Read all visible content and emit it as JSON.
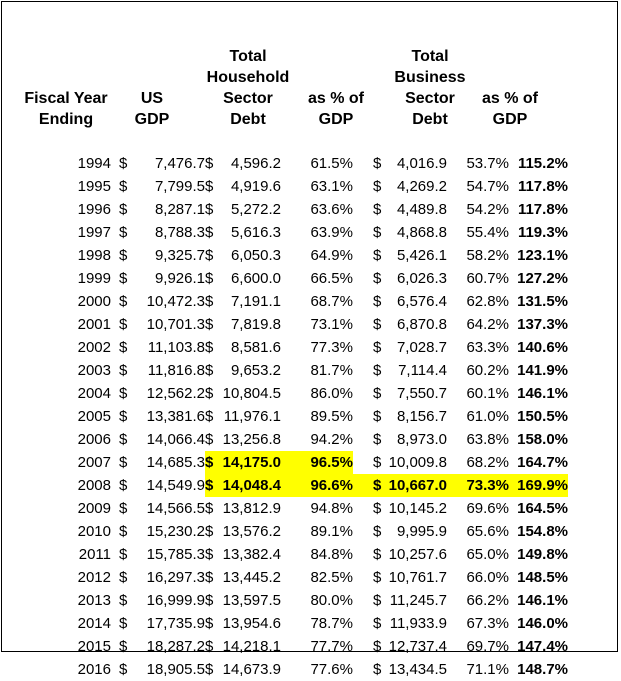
{
  "headers": {
    "fiscal_year": [
      "Fiscal Year",
      "Ending"
    ],
    "us_gdp": [
      "US",
      "GDP"
    ],
    "household_debt": [
      "Total",
      "Household",
      "Sector",
      "Debt"
    ],
    "household_pct": [
      "as % of",
      "GDP"
    ],
    "business_debt": [
      "Total",
      "Business",
      "Sector",
      "Debt"
    ],
    "business_pct": [
      "as % of",
      "GDP"
    ]
  },
  "currency_symbol": "$",
  "highlight_color": "#ffff00",
  "rows": [
    {
      "year": "1994",
      "gdp": "7,476.7",
      "hh": "4,596.2",
      "hh_pct": "61.5%",
      "bus": "4,016.9",
      "bus_pct": "53.7%",
      "total": "115.2%"
    },
    {
      "year": "1995",
      "gdp": "7,799.5",
      "hh": "4,919.6",
      "hh_pct": "63.1%",
      "bus": "4,269.2",
      "bus_pct": "54.7%",
      "total": "117.8%"
    },
    {
      "year": "1996",
      "gdp": "8,287.1",
      "hh": "5,272.2",
      "hh_pct": "63.6%",
      "bus": "4,489.8",
      "bus_pct": "54.2%",
      "total": "117.8%"
    },
    {
      "year": "1997",
      "gdp": "8,788.3",
      "hh": "5,616.3",
      "hh_pct": "63.9%",
      "bus": "4,868.8",
      "bus_pct": "55.4%",
      "total": "119.3%"
    },
    {
      "year": "1998",
      "gdp": "9,325.7",
      "hh": "6,050.3",
      "hh_pct": "64.9%",
      "bus": "5,426.1",
      "bus_pct": "58.2%",
      "total": "123.1%"
    },
    {
      "year": "1999",
      "gdp": "9,926.1",
      "hh": "6,600.0",
      "hh_pct": "66.5%",
      "bus": "6,026.3",
      "bus_pct": "60.7%",
      "total": "127.2%"
    },
    {
      "year": "2000",
      "gdp": "10,472.3",
      "hh": "7,191.1",
      "hh_pct": "68.7%",
      "bus": "6,576.4",
      "bus_pct": "62.8%",
      "total": "131.5%"
    },
    {
      "year": "2001",
      "gdp": "10,701.3",
      "hh": "7,819.8",
      "hh_pct": "73.1%",
      "bus": "6,870.8",
      "bus_pct": "64.2%",
      "total": "137.3%"
    },
    {
      "year": "2002",
      "gdp": "11,103.8",
      "hh": "8,581.6",
      "hh_pct": "77.3%",
      "bus": "7,028.7",
      "bus_pct": "63.3%",
      "total": "140.6%"
    },
    {
      "year": "2003",
      "gdp": "11,816.8",
      "hh": "9,653.2",
      "hh_pct": "81.7%",
      "bus": "7,114.4",
      "bus_pct": "60.2%",
      "total": "141.9%"
    },
    {
      "year": "2004",
      "gdp": "12,562.2",
      "hh": "10,804.5",
      "hh_pct": "86.0%",
      "bus": "7,550.7",
      "bus_pct": "60.1%",
      "total": "146.1%"
    },
    {
      "year": "2005",
      "gdp": "13,381.6",
      "hh": "11,976.1",
      "hh_pct": "89.5%",
      "bus": "8,156.7",
      "bus_pct": "61.0%",
      "total": "150.5%"
    },
    {
      "year": "2006",
      "gdp": "14,066.4",
      "hh": "13,256.8",
      "hh_pct": "94.2%",
      "bus": "8,973.0",
      "bus_pct": "63.8%",
      "total": "158.0%"
    },
    {
      "year": "2007",
      "gdp": "14,685.3",
      "hh": "14,175.0",
      "hh_pct": "96.5%",
      "bus": "10,009.8",
      "bus_pct": "68.2%",
      "total": "164.7%",
      "hh_highlight": true
    },
    {
      "year": "2008",
      "gdp": "14,549.9",
      "hh": "14,048.4",
      "hh_pct": "96.6%",
      "bus": "10,667.0",
      "bus_pct": "73.3%",
      "total": "169.9%",
      "hh_highlight": true,
      "bus_highlight": true
    },
    {
      "year": "2009",
      "gdp": "14,566.5",
      "hh": "13,812.9",
      "hh_pct": "94.8%",
      "bus": "10,145.2",
      "bus_pct": "69.6%",
      "total": "164.5%"
    },
    {
      "year": "2010",
      "gdp": "15,230.2",
      "hh": "13,576.2",
      "hh_pct": "89.1%",
      "bus": "9,995.9",
      "bus_pct": "65.6%",
      "total": "154.8%"
    },
    {
      "year": "2011",
      "gdp": "15,785.3",
      "hh": "13,382.4",
      "hh_pct": "84.8%",
      "bus": "10,257.6",
      "bus_pct": "65.0%",
      "total": "149.8%"
    },
    {
      "year": "2012",
      "gdp": "16,297.3",
      "hh": "13,445.2",
      "hh_pct": "82.5%",
      "bus": "10,761.7",
      "bus_pct": "66.0%",
      "total": "148.5%"
    },
    {
      "year": "2013",
      "gdp": "16,999.9",
      "hh": "13,597.5",
      "hh_pct": "80.0%",
      "bus": "11,245.7",
      "bus_pct": "66.2%",
      "total": "146.1%"
    },
    {
      "year": "2014",
      "gdp": "17,735.9",
      "hh": "13,954.6",
      "hh_pct": "78.7%",
      "bus": "11,933.9",
      "bus_pct": "67.3%",
      "total": "146.0%"
    },
    {
      "year": "2015",
      "gdp": "18,287.2",
      "hh": "14,218.1",
      "hh_pct": "77.7%",
      "bus": "12,737.4",
      "bus_pct": "69.7%",
      "total": "147.4%"
    },
    {
      "year": "2016",
      "gdp": "18,905.5",
      "hh": "14,673.9",
      "hh_pct": "77.6%",
      "bus": "13,434.5",
      "bus_pct": "71.1%",
      "total": "148.7%"
    }
  ]
}
